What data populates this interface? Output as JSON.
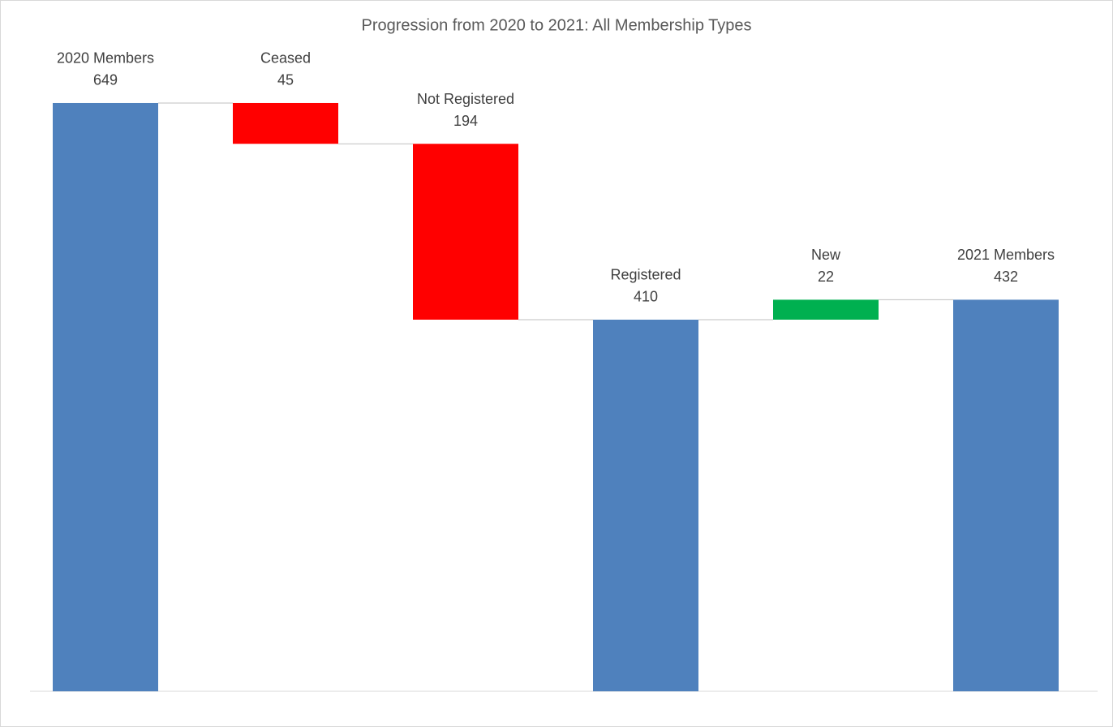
{
  "chart_data": {
    "type": "waterfall",
    "title": "Progression from 2020 to 2021: All Membership Types",
    "categories": [
      "2020 Members",
      "Ceased",
      "Not Registered",
      "Registered",
      "New",
      "2021 Members"
    ],
    "values": [
      649,
      -45,
      -194,
      410,
      22,
      432
    ],
    "value_labels": [
      "649",
      "45",
      "194",
      "410",
      "22",
      "432"
    ],
    "measure": [
      "absolute",
      "relative",
      "relative",
      "absolute",
      "relative",
      "absolute"
    ],
    "colors": [
      "#4f81bd",
      "#ff0000",
      "#ff0000",
      "#4f81bd",
      "#00b050",
      "#4f81bd"
    ],
    "ylim": [
      0,
      700
    ]
  }
}
